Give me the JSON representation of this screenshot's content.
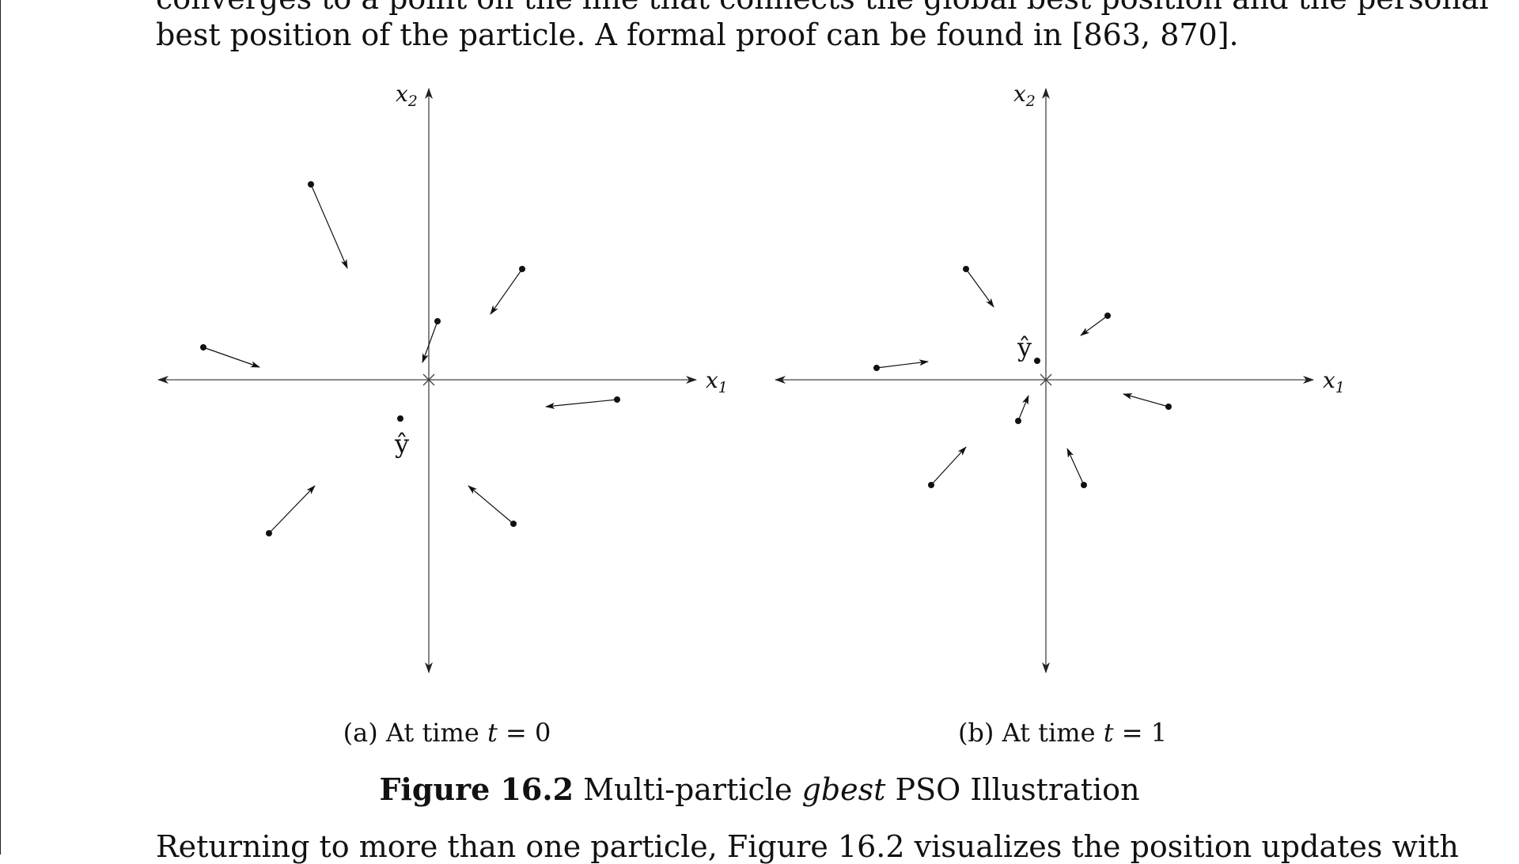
{
  "text": {
    "top_line_1": "converges to a point on the line that connects the global best position and the personal",
    "top_line_2": "best position of the particle. A formal proof can be found in [863, 870].",
    "bottom_line": "Returning to more than one particle, Figure 16.2 visualizes the position updates with"
  },
  "figure": {
    "number": "Figure 16.2",
    "caption_before": "Multi-particle",
    "caption_em": "gbest",
    "caption_after": "PSO Illustration",
    "panels": [
      {
        "id": "a",
        "caption_prefix": "(a) At time",
        "caption_var": "t",
        "caption_suffix": "= 0",
        "x_axis_label": "x",
        "x_axis_sub": "1",
        "y_axis_label": "x",
        "y_axis_sub": "2",
        "gbest_label": "ŷ"
      },
      {
        "id": "b",
        "caption_prefix": "(b) At time",
        "caption_var": "t",
        "caption_suffix": "= 1",
        "x_axis_label": "x",
        "x_axis_sub": "1",
        "y_axis_label": "x",
        "y_axis_sub": "2",
        "gbest_label": "ŷ"
      }
    ]
  },
  "colors": {
    "ink": "#111111",
    "axis": "#444444"
  }
}
